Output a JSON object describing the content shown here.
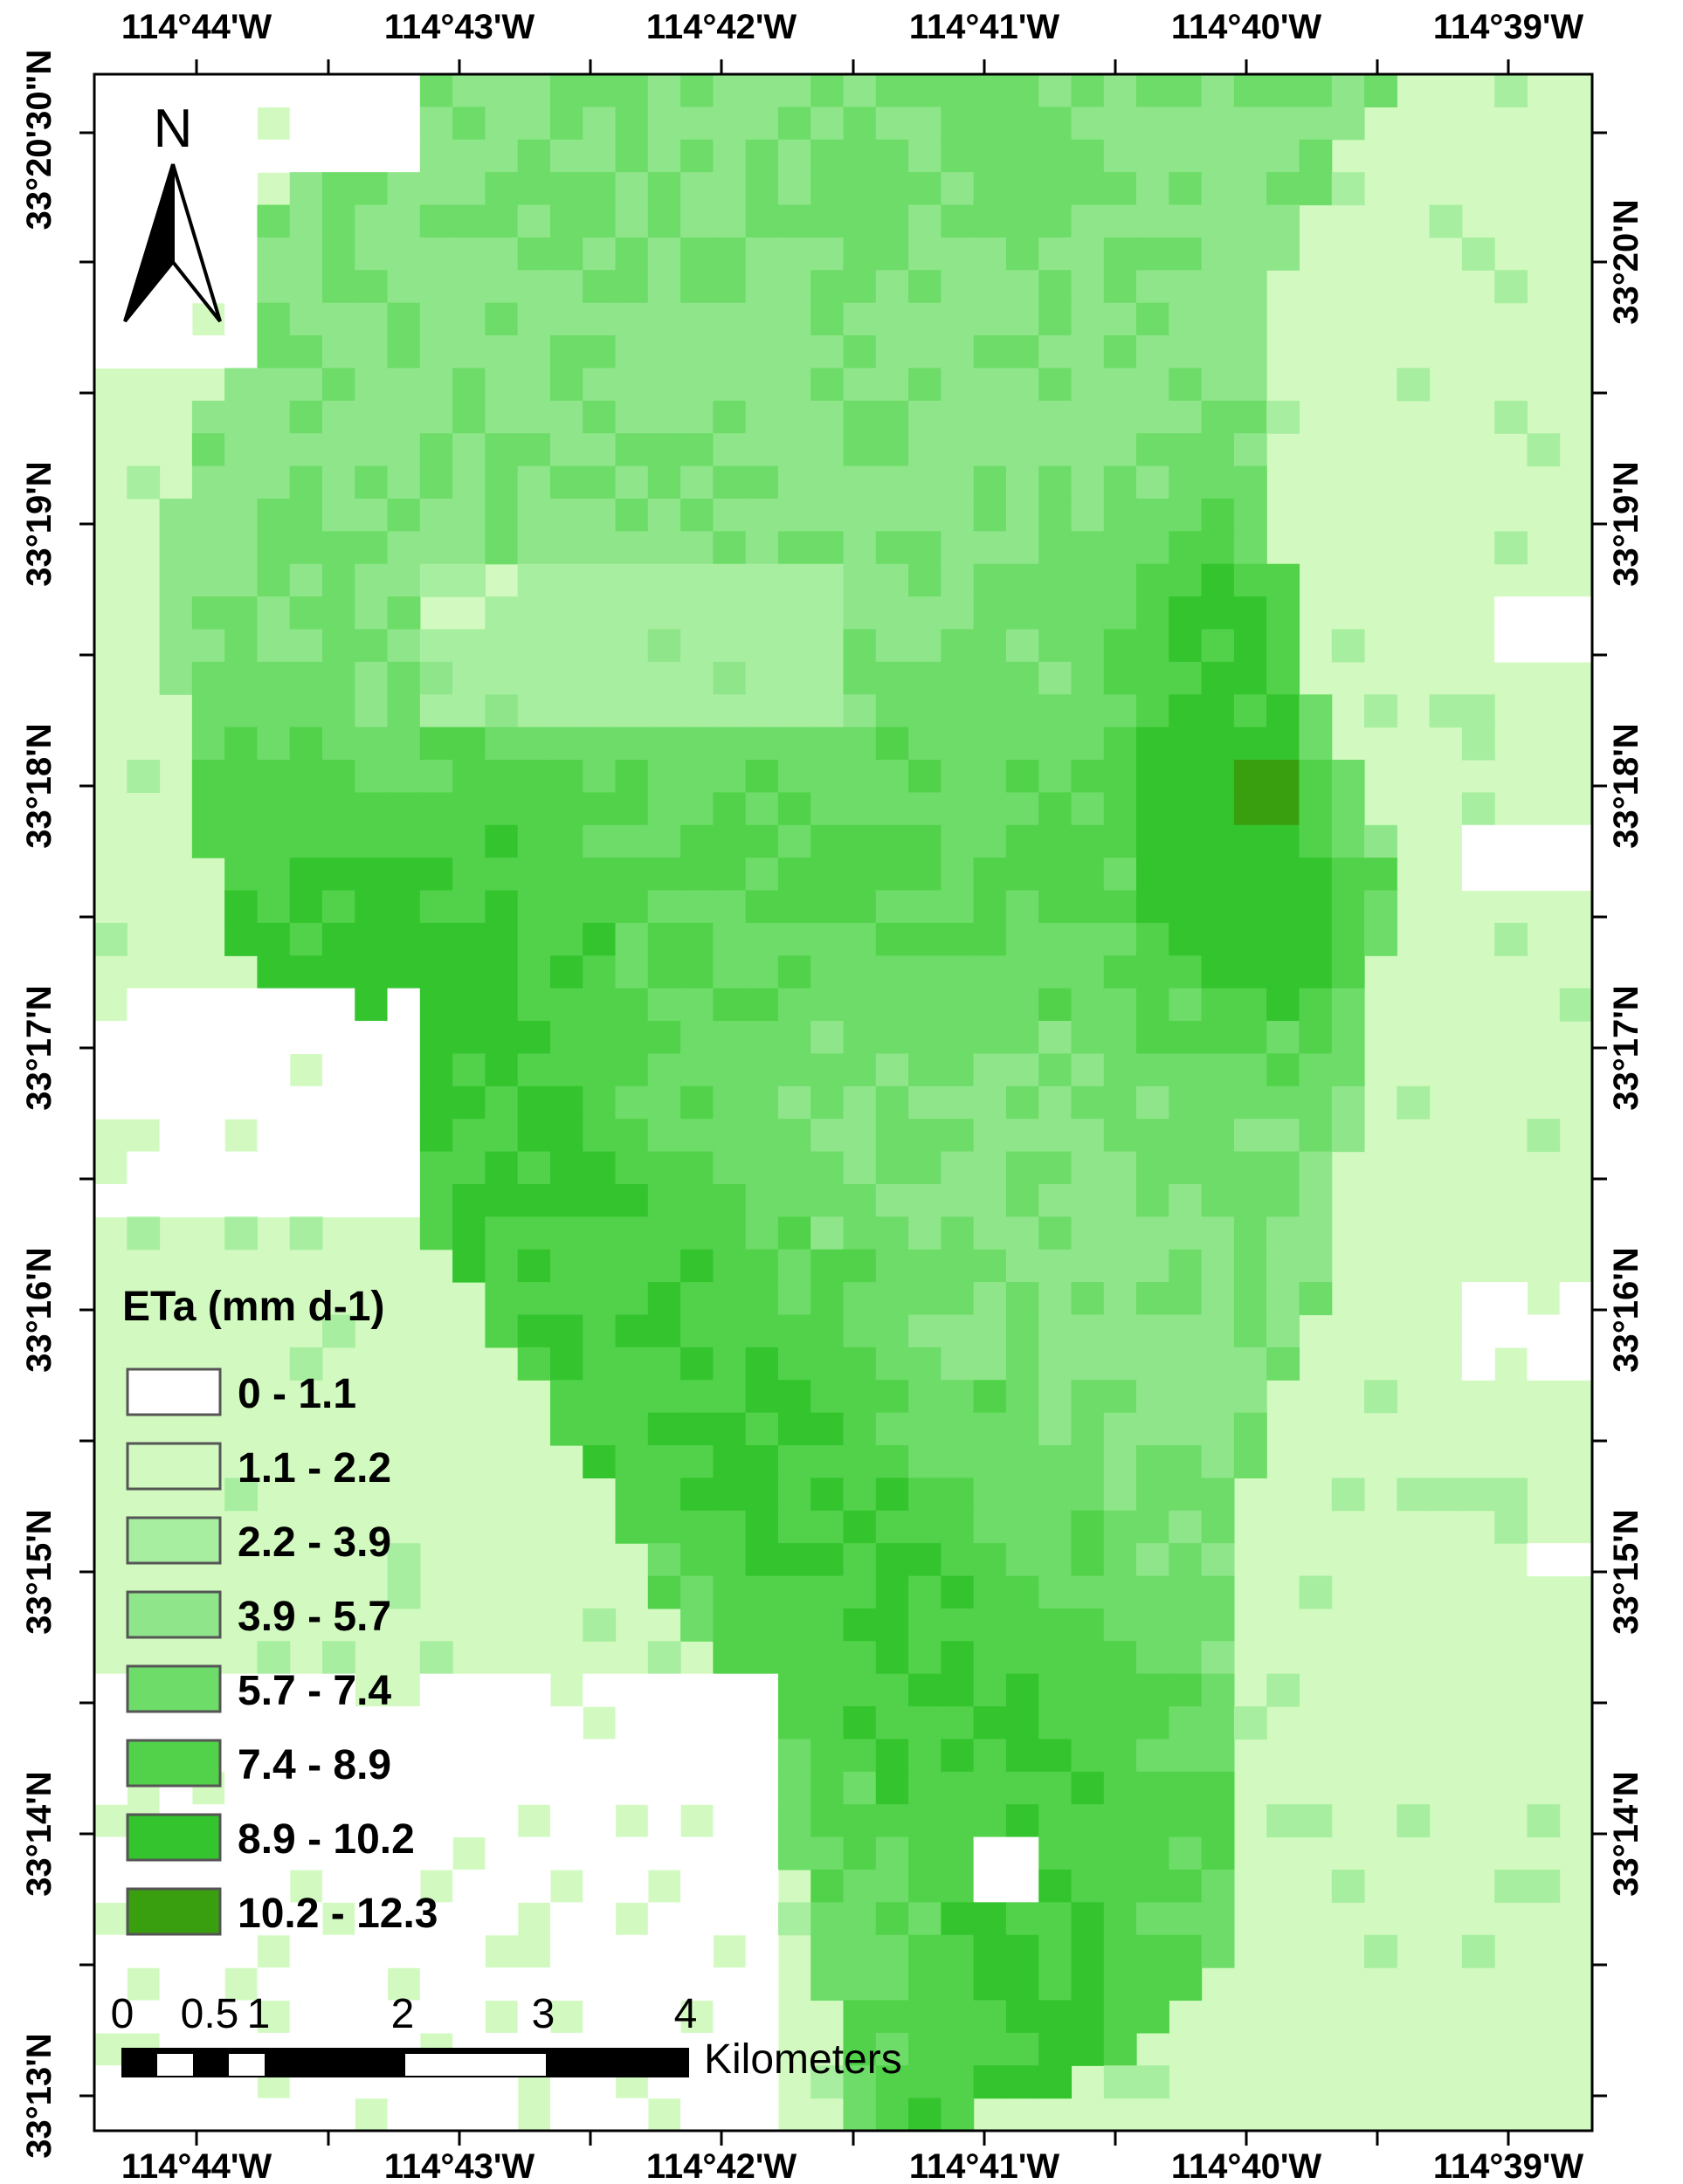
{
  "longitude_labels": [
    "114°44'W",
    "114°43'W",
    "114°42'W",
    "114°41'W",
    "114°40'W",
    "114°39'W"
  ],
  "latitude_labels": [
    "33°20'30\"N",
    "33°20'N",
    "33°19'N",
    "33°18'N",
    "33°17'N",
    "33°16'N",
    "33°15'N",
    "33°14'N",
    "33°13'N"
  ],
  "left_latitude_labels": [
    "33°20'30\"N",
    "33°19'N",
    "33°18'N",
    "33°17'N",
    "33°16'N",
    "33°15'N",
    "33°14'N",
    "33°13'N"
  ],
  "right_latitude_labels": [
    "33°20'N",
    "33°19'N",
    "33°18'N",
    "33°17'N",
    "33°16'N",
    "33°15'N",
    "33°14'N"
  ],
  "north_arrow": {
    "label": "N",
    "icon": "north-arrow-icon"
  },
  "legend": {
    "title": "ETa (mm d-1)",
    "classes": [
      {
        "label": "0 - 1.1",
        "color": "#ffffff"
      },
      {
        "label": "1.1 - 2.2",
        "color": "#d2fac0"
      },
      {
        "label": "2.2 - 3.9",
        "color": "#a8eea0"
      },
      {
        "label": "3.9 - 5.7",
        "color": "#8fe68a"
      },
      {
        "label": "5.7 - 7.4",
        "color": "#6ddc68"
      },
      {
        "label": "7.4 - 8.9",
        "color": "#52d24a"
      },
      {
        "label": "8.9 - 10.2",
        "color": "#33c42e"
      },
      {
        "label": "10.2 - 12.3",
        "color": "#3a9f0e"
      }
    ]
  },
  "scale_bar": {
    "tick_labels": [
      "0",
      "0.5",
      "1",
      "2",
      "3",
      "4"
    ],
    "unit": "Kilometers"
  }
}
